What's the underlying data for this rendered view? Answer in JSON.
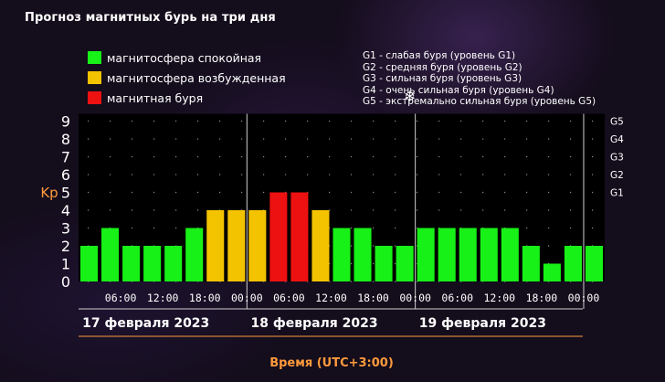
{
  "title": "Прогноз магнитных бурь на три дня",
  "legend": [
    {
      "label": "магнитосфера спокойная",
      "color": "#17f117"
    },
    {
      "label": "магнитосфера возбужденная",
      "color": "#f4c300"
    },
    {
      "label": "магнитная буря",
      "color": "#ee1111"
    }
  ],
  "storm_scale": [
    "G1 - слабая буря (уровень G1)",
    "G2 - средняя буря (уровень G2)",
    "G3 - сильная буря (уровень G3)",
    "G4 - очень сильная буря (уровень G4)",
    "G5 - экстремально сильная буря (уровень G5)"
  ],
  "snowflake_icon": "snowflake-icon",
  "chart_data": {
    "type": "bar",
    "ylabel": "Kp",
    "xlabel": "Время (UTC+3:00)",
    "ylim": [
      0,
      9
    ],
    "yticks": [
      "0",
      "1",
      "2",
      "3",
      "4",
      "5",
      "6",
      "7",
      "8",
      "9"
    ],
    "right_ticks": [
      {
        "kp": 5,
        "label": "G1"
      },
      {
        "kp": 6,
        "label": "G2"
      },
      {
        "kp": 7,
        "label": "G3"
      },
      {
        "kp": 8,
        "label": "G4"
      },
      {
        "kp": 9,
        "label": "G5"
      }
    ],
    "time_labels": [
      "06:00",
      "12:00",
      "18:00",
      "00:00",
      "06:00",
      "12:00",
      "18:00",
      "00:00",
      "06:00",
      "12:00",
      "18:00",
      "00:00"
    ],
    "days": [
      "17 февраля 2023",
      "18 февраля 2023",
      "19 февраля 2023"
    ],
    "values": [
      2,
      3,
      2,
      2,
      2,
      3,
      4,
      4,
      4,
      5,
      5,
      4,
      3,
      3,
      2,
      2,
      3,
      3,
      3,
      3,
      3,
      2,
      1,
      2,
      2
    ],
    "colors": {
      "quiet": "#17f117",
      "active": "#f4c300",
      "storm": "#ee1111"
    },
    "grid": true
  }
}
